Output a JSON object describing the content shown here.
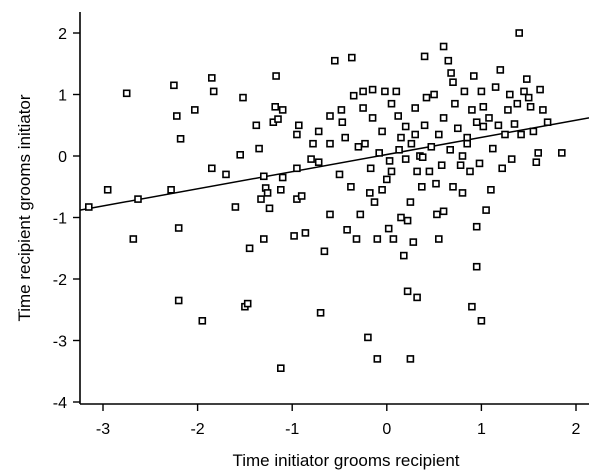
{
  "chart_data": {
    "type": "scatter",
    "title": "",
    "xlabel": "Time initiator grooms recipient",
    "ylabel": "Time recipient grooms initiator",
    "xlim": [
      -3.3,
      2.3
    ],
    "ylim": [
      -4,
      2.3
    ],
    "xticks": [
      -3,
      -2,
      -1,
      0,
      1,
      2
    ],
    "yticks": [
      -4,
      -3,
      -2,
      -1,
      0,
      1,
      2
    ],
    "xtick_labels": [
      "-3",
      "-2",
      "-1",
      "0",
      "1",
      "2"
    ],
    "ytick_labels": [
      "-4",
      "-3",
      "-2",
      "-1",
      "0",
      "1",
      "2"
    ],
    "grid": false,
    "marker": "open-square",
    "trendline": {
      "x": [
        -3.3,
        2.3
      ],
      "y": [
        -0.88,
        0.62
      ]
    },
    "points": [
      [
        -3.15,
        -0.83
      ],
      [
        -2.95,
        -0.55
      ],
      [
        -2.75,
        1.02
      ],
      [
        -2.68,
        -1.35
      ],
      [
        -2.63,
        -0.7
      ],
      [
        -2.28,
        -0.55
      ],
      [
        -2.25,
        1.15
      ],
      [
        -2.22,
        0.65
      ],
      [
        -2.2,
        -1.17
      ],
      [
        -2.2,
        -2.35
      ],
      [
        -2.18,
        0.28
      ],
      [
        -2.03,
        0.75
      ],
      [
        -1.95,
        -2.68
      ],
      [
        -1.85,
        1.27
      ],
      [
        -1.83,
        1.05
      ],
      [
        -1.85,
        -0.2
      ],
      [
        -1.7,
        -0.3
      ],
      [
        -1.6,
        -0.83
      ],
      [
        -1.52,
        0.95
      ],
      [
        -1.5,
        -2.45
      ],
      [
        -1.47,
        -2.4
      ],
      [
        -1.45,
        -1.5
      ],
      [
        -1.55,
        0.02
      ],
      [
        -1.38,
        0.5
      ],
      [
        -1.35,
        0.12
      ],
      [
        -1.33,
        -0.7
      ],
      [
        -1.3,
        -0.33
      ],
      [
        -1.28,
        -0.52
      ],
      [
        -1.26,
        -0.6
      ],
      [
        -1.24,
        -0.85
      ],
      [
        -1.3,
        -1.35
      ],
      [
        -1.2,
        0.55
      ],
      [
        -1.18,
        0.8
      ],
      [
        -1.17,
        1.3
      ],
      [
        -1.15,
        0.6
      ],
      [
        -1.1,
        0.75
      ],
      [
        -1.1,
        -0.35
      ],
      [
        -1.12,
        -0.55
      ],
      [
        -1.12,
        -3.45
      ],
      [
        -0.98,
        -1.3
      ],
      [
        -0.95,
        0.35
      ],
      [
        -0.95,
        -0.2
      ],
      [
        -0.95,
        -0.7
      ],
      [
        -0.93,
        0.5
      ],
      [
        -0.9,
        -0.65
      ],
      [
        -0.86,
        -1.25
      ],
      [
        -0.8,
        -0.05
      ],
      [
        -0.78,
        0.2
      ],
      [
        -0.72,
        0.4
      ],
      [
        -0.7,
        -2.55
      ],
      [
        -0.66,
        -1.55
      ],
      [
        -0.6,
        -0.95
      ],
      [
        -0.6,
        0.2
      ],
      [
        -0.55,
        1.55
      ],
      [
        -0.5,
        -0.3
      ],
      [
        -0.48,
        0.75
      ],
      [
        -0.47,
        0.55
      ],
      [
        -0.44,
        0.3
      ],
      [
        -0.42,
        -1.2
      ],
      [
        -0.38,
        -0.5
      ],
      [
        -0.37,
        1.6
      ],
      [
        -0.35,
        0.98
      ],
      [
        -0.32,
        -1.35
      ],
      [
        -0.3,
        0.15
      ],
      [
        -0.28,
        -0.95
      ],
      [
        -0.25,
        0.78
      ],
      [
        -0.23,
        0.2
      ],
      [
        -0.2,
        -2.95
      ],
      [
        -0.18,
        -0.6
      ],
      [
        -0.17,
        -0.2
      ],
      [
        -0.15,
        1.08
      ],
      [
        -0.15,
        0.62
      ],
      [
        -0.13,
        -0.75
      ],
      [
        -0.1,
        -1.35
      ],
      [
        -0.1,
        -3.3
      ],
      [
        -0.08,
        0.05
      ],
      [
        -0.05,
        0.4
      ],
      [
        -0.02,
        1.05
      ],
      [
        0.0,
        -0.38
      ],
      [
        0.03,
        -0.08
      ],
      [
        0.02,
        -1.18
      ],
      [
        0.05,
        0.85
      ],
      [
        0.05,
        -0.25
      ],
      [
        0.07,
        -1.35
      ],
      [
        0.1,
        1.05
      ],
      [
        0.12,
        0.65
      ],
      [
        0.13,
        0.1
      ],
      [
        0.15,
        0.3
      ],
      [
        0.18,
        -1.62
      ],
      [
        0.2,
        0.48
      ],
      [
        0.2,
        -0.05
      ],
      [
        0.22,
        -1.05
      ],
      [
        0.25,
        -0.75
      ],
      [
        0.26,
        0.2
      ],
      [
        0.28,
        -1.4
      ],
      [
        0.3,
        0.78
      ],
      [
        0.32,
        -0.25
      ],
      [
        0.35,
        0.0
      ],
      [
        0.37,
        -0.5
      ],
      [
        0.38,
        -0.02
      ],
      [
        0.4,
        0.5
      ],
      [
        0.42,
        0.95
      ],
      [
        0.45,
        -0.25
      ],
      [
        0.47,
        0.15
      ],
      [
        0.5,
        1.0
      ],
      [
        0.52,
        -0.45
      ],
      [
        0.53,
        -0.95
      ],
      [
        0.55,
        0.35
      ],
      [
        0.55,
        -1.35
      ],
      [
        0.58,
        -0.15
      ],
      [
        0.6,
        -0.9
      ],
      [
        0.6,
        0.62
      ],
      [
        0.65,
        1.55
      ],
      [
        0.67,
        0.1
      ],
      [
        0.7,
        -0.5
      ],
      [
        0.7,
        1.2
      ],
      [
        0.72,
        0.85
      ],
      [
        0.75,
        0.45
      ],
      [
        0.78,
        -0.15
      ],
      [
        0.8,
        0.0
      ],
      [
        0.8,
        -0.6
      ],
      [
        0.82,
        1.05
      ],
      [
        0.85,
        0.3
      ],
      [
        0.88,
        -0.25
      ],
      [
        0.9,
        0.75
      ],
      [
        0.92,
        1.3
      ],
      [
        0.95,
        0.55
      ],
      [
        0.95,
        -1.8
      ],
      [
        0.98,
        -0.12
      ],
      [
        1.0,
        1.05
      ],
      [
        1.02,
        0.48
      ],
      [
        1.02,
        0.8
      ],
      [
        1.05,
        -0.88
      ],
      [
        1.08,
        0.62
      ],
      [
        1.1,
        -0.55
      ],
      [
        1.12,
        0.12
      ],
      [
        1.15,
        1.12
      ],
      [
        1.18,
        0.5
      ],
      [
        1.2,
        1.4
      ],
      [
        1.22,
        -0.2
      ],
      [
        1.25,
        0.35
      ],
      [
        1.28,
        0.75
      ],
      [
        1.3,
        1.0
      ],
      [
        1.32,
        -0.05
      ],
      [
        1.35,
        0.52
      ],
      [
        1.38,
        0.85
      ],
      [
        1.4,
        2.0
      ],
      [
        1.42,
        0.35
      ],
      [
        1.45,
        1.05
      ],
      [
        1.48,
        1.25
      ],
      [
        1.5,
        0.95
      ],
      [
        1.52,
        0.8
      ],
      [
        1.55,
        0.4
      ],
      [
        1.58,
        -0.1
      ],
      [
        1.6,
        0.05
      ],
      [
        1.62,
        1.08
      ],
      [
        1.65,
        0.75
      ],
      [
        1.7,
        0.55
      ],
      [
        1.85,
        0.05
      ],
      [
        -0.72,
        -0.1
      ],
      [
        0.22,
        -2.2
      ],
      [
        0.25,
        -3.3
      ],
      [
        0.32,
        -2.3
      ],
      [
        0.6,
        1.78
      ],
      [
        0.9,
        -2.45
      ],
      [
        0.95,
        -1.15
      ],
      [
        1.0,
        -2.68
      ],
      [
        0.4,
        1.62
      ],
      [
        0.15,
        -1.0
      ],
      [
        -0.05,
        -0.55
      ],
      [
        0.68,
        1.35
      ],
      [
        0.85,
        0.2
      ],
      [
        -0.25,
        1.05
      ],
      [
        0.3,
        0.35
      ],
      [
        -0.6,
        0.65
      ]
    ]
  }
}
